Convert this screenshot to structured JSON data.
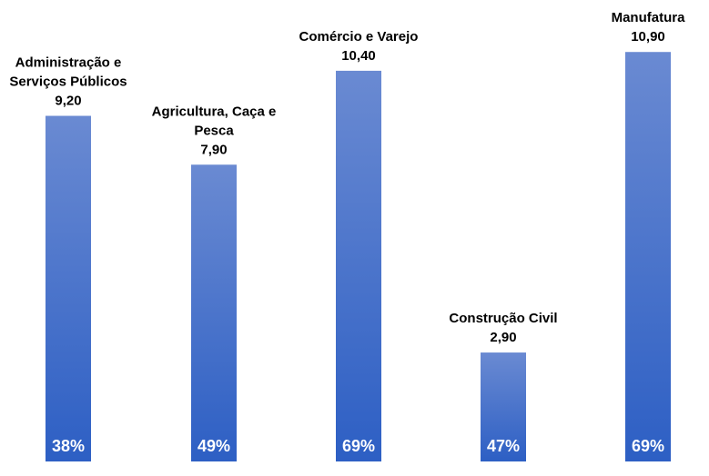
{
  "chart_data": {
    "type": "bar",
    "title": "",
    "xlabel": "",
    "ylabel": "",
    "ylim": [
      0,
      11.8
    ],
    "grid": false,
    "legend": "none",
    "categories": [
      [
        "Administração e",
        "Serviços Públicos"
      ],
      [
        "Agricultura, Caça e",
        "Pesca"
      ],
      [
        "Comércio e Varejo"
      ],
      [
        "Construção Civil"
      ],
      [
        "Manufatura"
      ]
    ],
    "values": [
      9.2,
      7.9,
      10.4,
      2.9,
      10.9
    ],
    "value_labels": [
      "9,20",
      "7,90",
      "10,40",
      "2,90",
      "10,90"
    ],
    "percent_labels": [
      "38%",
      "49%",
      "69%",
      "47%",
      "69%"
    ],
    "colors": {
      "bar_top": "#6a8ad2",
      "bar_bottom": "#2d5fc4",
      "label_text": "#000000",
      "percent_text": "#ffffff"
    }
  }
}
